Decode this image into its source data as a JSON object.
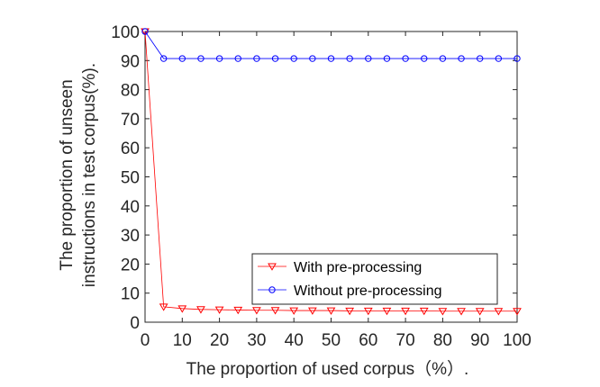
{
  "chart_data": {
    "type": "line",
    "title": "",
    "xlabel": "The proportion of used corpus（%）.",
    "ylabel": [
      "The proportion of unseen",
      "instructions in test corpus(%)."
    ],
    "xlim": [
      0,
      100
    ],
    "ylim": [
      0,
      100
    ],
    "xticks": [
      "0",
      "10",
      "20",
      "30",
      "40",
      "50",
      "60",
      "70",
      "80",
      "90",
      "100"
    ],
    "yticks": [
      "0",
      "10",
      "20",
      "30",
      "40",
      "50",
      "60",
      "70",
      "80",
      "90",
      "100"
    ],
    "grid": false,
    "legend_position": "bottom-right",
    "x": [
      0,
      5,
      10,
      15,
      20,
      25,
      30,
      35,
      40,
      45,
      50,
      55,
      60,
      65,
      70,
      75,
      80,
      85,
      90,
      95,
      100
    ],
    "series": [
      {
        "name": "With pre-processing",
        "color": "#ff0000",
        "marker": "triangle-down",
        "values": [
          100,
          5.3,
          4.7,
          4.4,
          4.3,
          4.2,
          4.1,
          4.1,
          4.0,
          4.0,
          4.0,
          3.9,
          3.9,
          3.9,
          3.9,
          3.9,
          3.8,
          3.8,
          3.8,
          3.8,
          3.8
        ]
      },
      {
        "name": "Without pre-processing",
        "color": "#0000ff",
        "marker": "circle",
        "values": [
          100,
          90.7,
          90.7,
          90.7,
          90.7,
          90.7,
          90.7,
          90.7,
          90.7,
          90.7,
          90.7,
          90.7,
          90.7,
          90.7,
          90.7,
          90.7,
          90.7,
          90.7,
          90.7,
          90.7,
          90.7
        ]
      }
    ]
  }
}
